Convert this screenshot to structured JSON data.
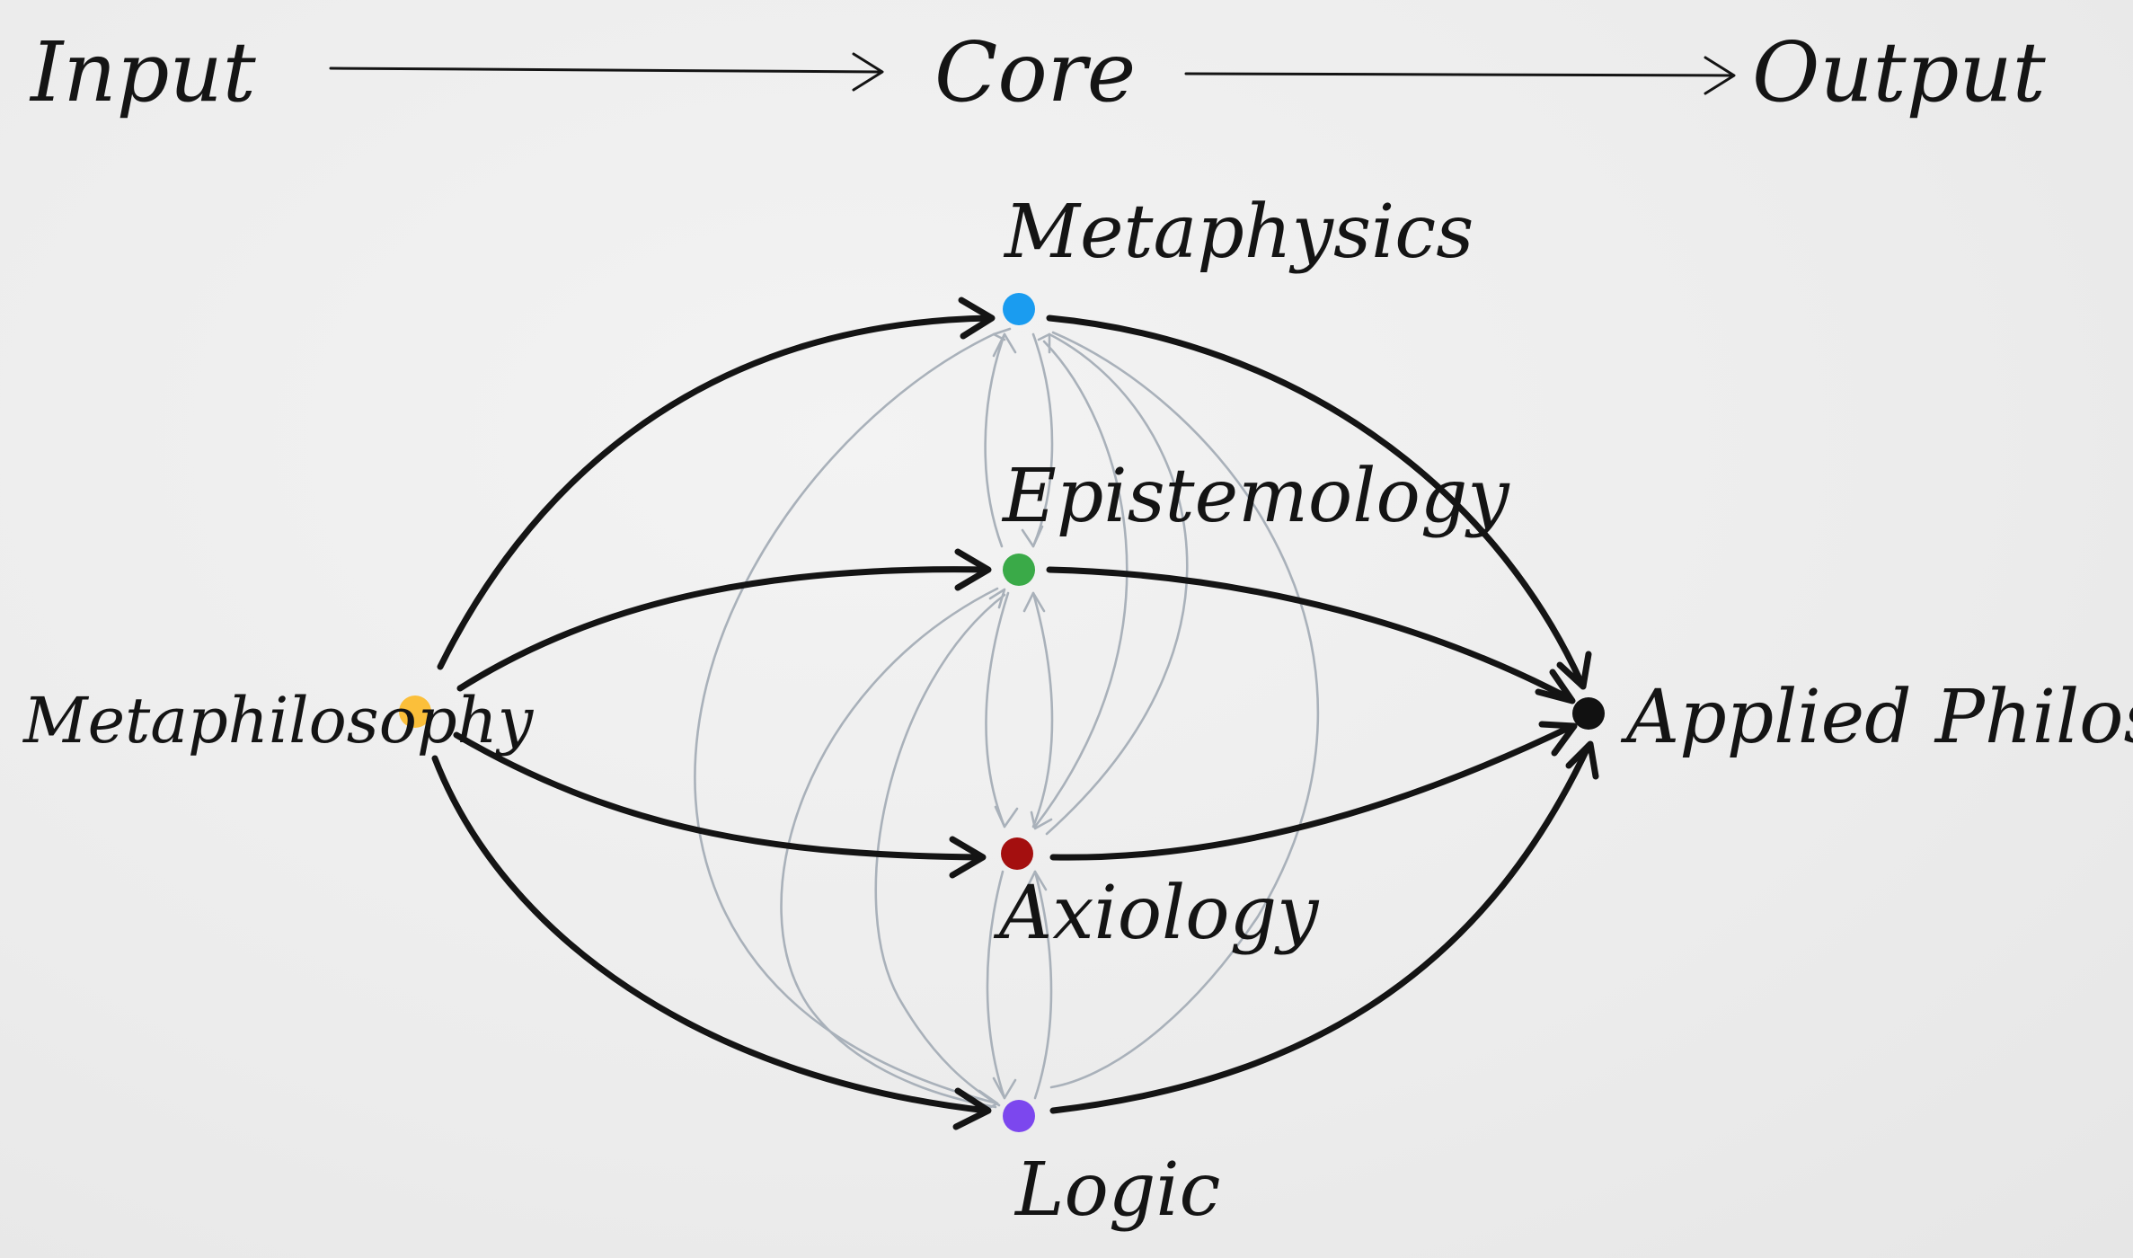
{
  "header": {
    "input": "Input",
    "core": "Core",
    "output": "Output"
  },
  "nodes": {
    "metaphilosophy": {
      "label": "Metaphilosophy",
      "color": "#fbbf3a"
    },
    "metaphysics": {
      "label": "Metaphysics",
      "color": "#1a9cf0"
    },
    "epistemology": {
      "label": "Epistemology",
      "color": "#3aaa48"
    },
    "axiology": {
      "label": "Axiology",
      "color": "#a40f0f"
    },
    "logic": {
      "label": "Logic",
      "color": "#7c47ee"
    },
    "applied": {
      "label": "Applied Philosophy",
      "color": "#111111"
    }
  },
  "edge_colors": {
    "dark": "#141414",
    "light": "#a9b1ba"
  }
}
